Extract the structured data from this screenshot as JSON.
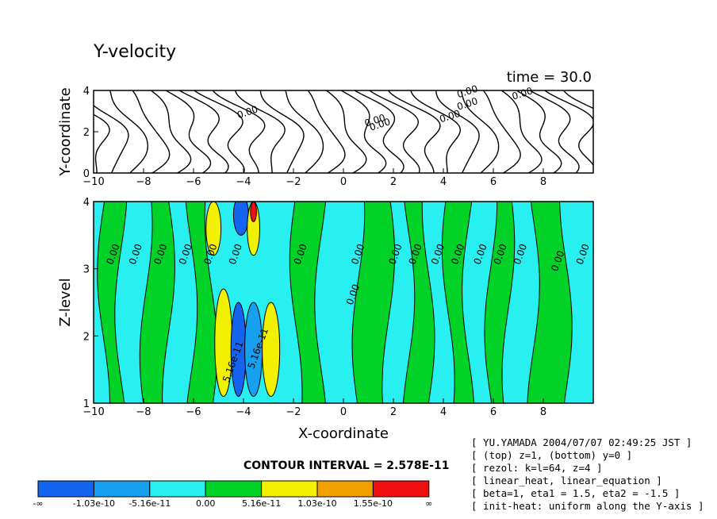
{
  "chart_data": [
    {
      "type": "contour",
      "title": "Y-velocity",
      "time_label": "time = 30.0",
      "xlabel": "",
      "ylabel": "Y-coordinate",
      "xlim": [
        -10,
        10
      ],
      "ylim": [
        0,
        4
      ],
      "xticks": [
        -10,
        -8,
        -6,
        -4,
        -2,
        0,
        2,
        4,
        6,
        8
      ],
      "yticks": [
        0,
        2,
        4
      ],
      "contour_labels": [
        {
          "x": -3.8,
          "y": 2.8,
          "text": "0.00"
        },
        {
          "x": 1.3,
          "y": 2.4,
          "text": "0.00"
        },
        {
          "x": 4.3,
          "y": 2.6,
          "text": "0.00"
        },
        {
          "x": 5.0,
          "y": 3.2,
          "text": "0.00"
        },
        {
          "x": 5.0,
          "y": 3.8,
          "text": "0.00"
        },
        {
          "x": 7.2,
          "y": 3.7,
          "text": "0.00"
        },
        {
          "x": 1.5,
          "y": 2.2,
          "text": "0.00"
        }
      ]
    },
    {
      "type": "filled-contour",
      "xlabel": "X-coordinate",
      "ylabel": "Z-level",
      "xlim": [
        -10,
        10
      ],
      "ylim": [
        1,
        4
      ],
      "xticks": [
        -10,
        -8,
        -6,
        -4,
        -2,
        0,
        2,
        4,
        6,
        8
      ],
      "yticks": [
        1,
        2,
        3,
        4
      ],
      "contour_labels": [
        {
          "x": -9.1,
          "y": 3.2,
          "text": "0.00"
        },
        {
          "x": -8.2,
          "y": 3.2,
          "text": "0.00"
        },
        {
          "x": -7.2,
          "y": 3.2,
          "text": "0.00"
        },
        {
          "x": -6.2,
          "y": 3.2,
          "text": "0.00"
        },
        {
          "x": -5.2,
          "y": 3.2,
          "text": "0.00"
        },
        {
          "x": -4.2,
          "y": 3.2,
          "text": "0.00"
        },
        {
          "x": -1.6,
          "y": 3.2,
          "text": "0.00"
        },
        {
          "x": 0.7,
          "y": 3.2,
          "text": "0.00"
        },
        {
          "x": 0.5,
          "y": 2.6,
          "text": "0.00"
        },
        {
          "x": 2.2,
          "y": 3.2,
          "text": "0.00"
        },
        {
          "x": 3.0,
          "y": 3.2,
          "text": "0.00"
        },
        {
          "x": 3.9,
          "y": 3.2,
          "text": "0.00"
        },
        {
          "x": 4.7,
          "y": 3.2,
          "text": "0.00"
        },
        {
          "x": 5.6,
          "y": 3.2,
          "text": "0.00"
        },
        {
          "x": 6.4,
          "y": 3.2,
          "text": "0.00"
        },
        {
          "x": 7.2,
          "y": 3.2,
          "text": "0.00"
        },
        {
          "x": 8.7,
          "y": 3.1,
          "text": "0.00"
        },
        {
          "x": 9.7,
          "y": 3.2,
          "text": "0.00"
        },
        {
          "x": -4.3,
          "y": 1.6,
          "text": "5.16e-11"
        },
        {
          "x": -3.3,
          "y": 1.8,
          "text": "5.16e-11"
        }
      ]
    }
  ],
  "colorbar": {
    "contour_interval": "CONTOUR INTERVAL = 2.578E-11",
    "colors": [
      "#1464f0",
      "#18a0f0",
      "#28f0f0",
      "#00d228",
      "#f0f000",
      "#f0a000",
      "#f01010"
    ],
    "labels": [
      "-∞",
      "-1.03e-10",
      "-5.16e-11",
      "0.00",
      "5.16e-11",
      "1.03e-10",
      "1.55e-10",
      "∞"
    ]
  },
  "info_lines": [
    "[ YU.YAMADA 2004/07/07 02:49:25 JST ]",
    "[ (top) z=1, (bottom) y=0 ]",
    "[ rezol: k=l=64, z=4 ]",
    "[ linear_heat, linear_equation ]",
    "[ beta=1, eta1 = 1.5, eta2 = -1.5 ]",
    "[ init-heat: uniform along the Y-axis ]"
  ]
}
